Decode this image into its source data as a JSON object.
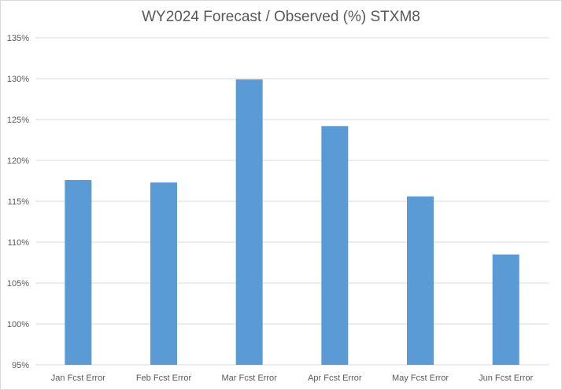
{
  "chart_data": {
    "type": "bar",
    "title": "WY2024 Forecast / Observed (%) STXM8",
    "categories": [
      "Jan Fcst Error",
      "Feb Fcst Error",
      "Mar Fcst Error",
      "Apr Fcst Error",
      "May Fcst Error",
      "Jun Fcst Error"
    ],
    "values": [
      117.6,
      117.3,
      129.9,
      124.2,
      115.6,
      108.5
    ],
    "ylim": [
      95,
      135
    ],
    "yticks": [
      95,
      100,
      105,
      110,
      115,
      120,
      125,
      130,
      135
    ],
    "ytick_format": "%",
    "xlabel": "",
    "ylabel": "",
    "grid": true,
    "legend": "none",
    "bar_color": "#5b9bd5",
    "grid_color": "#d9d9d9"
  }
}
